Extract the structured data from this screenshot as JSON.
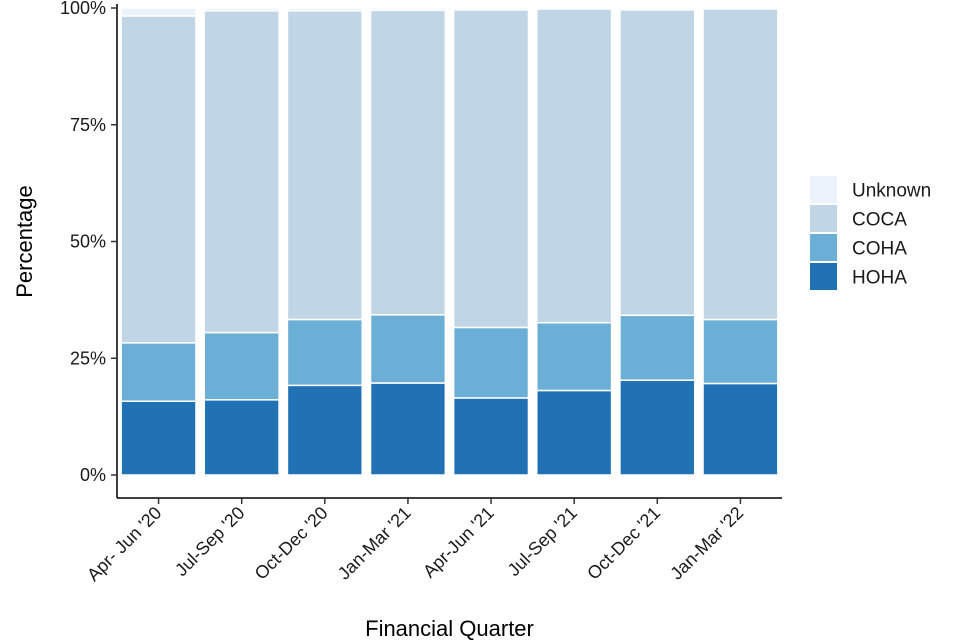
{
  "chart_data": {
    "type": "bar",
    "stacked": true,
    "title": "",
    "xlabel": "Financial Quarter",
    "ylabel": "Percentage",
    "ylim": [
      0,
      100
    ],
    "yticks": [
      0,
      25,
      50,
      75,
      100
    ],
    "ytick_labels": [
      "0%",
      "25%",
      "50%",
      "75%",
      "100%"
    ],
    "categories": [
      "Apr- Jun '20",
      "Jul-Sep '20",
      "Oct-Dec '20",
      "Jan-Mar '21",
      "Apr-Jun '21",
      "Jul-Sep '21",
      "Oct-Dec '21",
      "Jan-Mar '22"
    ],
    "series": [
      {
        "name": "HOHA",
        "color": "#2171b5",
        "values": [
          15.8,
          16.1,
          19.2,
          19.7,
          16.5,
          18.1,
          20.3,
          19.6
        ]
      },
      {
        "name": "COHA",
        "color": "#6baed6",
        "values": [
          12.5,
          14.4,
          14.1,
          14.6,
          15.1,
          14.5,
          13.9,
          13.7
        ]
      },
      {
        "name": "COCA",
        "color": "#c0d6e6",
        "values": [
          70.0,
          68.9,
          66.1,
          65.2,
          68.0,
          67.2,
          65.4,
          66.5
        ]
      },
      {
        "name": "Unknown",
        "color": "#edf3fc",
        "values": [
          1.7,
          0.6,
          0.6,
          0.5,
          0.4,
          0.2,
          0.4,
          0.2
        ]
      }
    ],
    "legend": {
      "position": "right",
      "order": [
        "Unknown",
        "COCA",
        "COHA",
        "HOHA"
      ]
    },
    "grid": false
  }
}
